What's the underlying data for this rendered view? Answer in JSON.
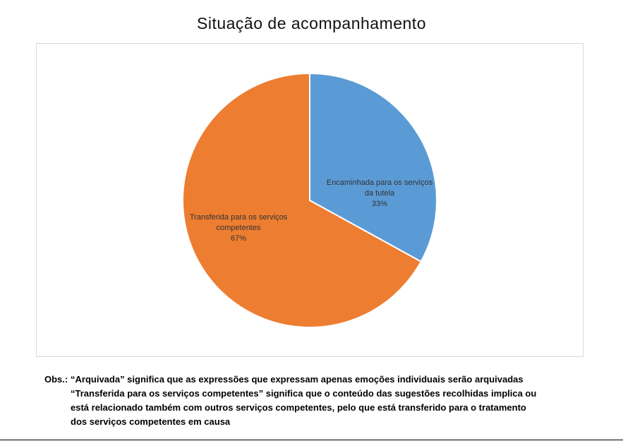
{
  "chart_data": {
    "type": "pie",
    "title": "Situação de acompanhamento",
    "slices": [
      {
        "label_lines": [
          "Encaminhada para os serviços",
          "da tutela"
        ],
        "value": 33,
        "value_label": "33%",
        "color": "#5b9bd5"
      },
      {
        "label_lines": [
          "Transferida para os serviços",
          "competentes"
        ],
        "value": 67,
        "value_label": "67%",
        "color": "#ed7d31"
      }
    ],
    "legend": "none",
    "grid": false
  },
  "note": {
    "label": "Obs.:",
    "lines": [
      "“Arquivada” significa que as expressões que expressam apenas emoções individuais serão arquivadas",
      "“Transferida para os serviços competentes” significa que o conteúdo das sugestões recolhidas implica ou",
      "está relacionado também com outros serviços competentes, pelo que está transferido para o tratamento",
      "dos serviços competentes em causa"
    ]
  }
}
